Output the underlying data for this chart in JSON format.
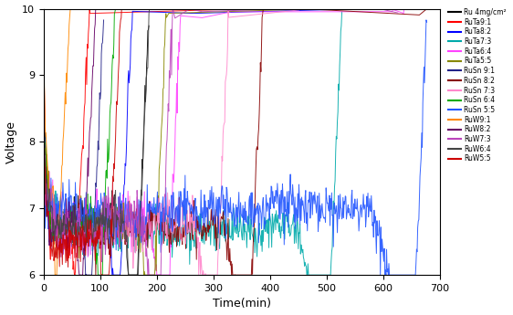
{
  "title": "",
  "xlabel": "Time(min)",
  "ylabel": "Voltage",
  "xlim": [
    0,
    700
  ],
  "ylim": [
    6,
    10
  ],
  "xticks": [
    0,
    100,
    200,
    300,
    400,
    500,
    600,
    700
  ],
  "yticks": [
    6,
    7,
    8,
    9,
    10
  ],
  "series": [
    {
      "label": "Ru 4mg/cm²",
      "color": "#000000",
      "lifetime": 160,
      "v_init": 8.0,
      "v_min": 6.8,
      "noise": 0.18,
      "rise_rate": 0.012
    },
    {
      "label": "RuTa9:1",
      "color": "#FF0000",
      "lifetime": 55,
      "v_init": 9.8,
      "v_min": 6.4,
      "noise": 0.18,
      "rise_rate": 0.05
    },
    {
      "label": "RuTa8:2",
      "color": "#0000FF",
      "lifetime": 130,
      "v_init": 8.5,
      "v_min": 6.6,
      "noise": 0.2,
      "rise_rate": 0.025
    },
    {
      "label": "RuTa7:3",
      "color": "#00AAAA",
      "lifetime": 500,
      "v_init": 7.5,
      "v_min": 6.6,
      "noise": 0.2,
      "rise_rate": 0.008
    },
    {
      "label": "RuTa6:4",
      "color": "#FF44FF",
      "lifetime": 215,
      "v_init": 7.8,
      "v_min": 6.7,
      "noise": 0.25,
      "rise_rate": 0.015
    },
    {
      "label": "RuTa5:5",
      "color": "#888800",
      "lifetime": 190,
      "v_init": 8.0,
      "v_min": 6.65,
      "noise": 0.2,
      "rise_rate": 0.018
    },
    {
      "label": "RuSn 9:1",
      "color": "#222288",
      "lifetime": 80,
      "v_init": 8.5,
      "v_min": 6.7,
      "noise": 0.18,
      "rise_rate": 0.04
    },
    {
      "label": "RuSn 8:2",
      "color": "#880000",
      "lifetime": 360,
      "v_init": 7.2,
      "v_min": 6.6,
      "noise": 0.2,
      "rise_rate": 0.008
    },
    {
      "label": "RuSn 7:3",
      "color": "#FF88CC",
      "lifetime": 300,
      "v_init": 7.5,
      "v_min": 6.6,
      "noise": 0.25,
      "rise_rate": 0.01
    },
    {
      "label": "RuSn 6:4",
      "color": "#00AA00",
      "lifetime": 100,
      "v_init": 9.0,
      "v_min": 6.7,
      "noise": 0.2,
      "rise_rate": 0.035
    },
    {
      "label": "RuSn 5:5",
      "color": "#2255FF",
      "lifetime": 650,
      "v_init": 7.2,
      "v_min": 6.9,
      "noise": 0.22,
      "rise_rate": 0.005
    },
    {
      "label": "RuW9:1",
      "color": "#FF8800",
      "lifetime": 20,
      "v_init": 9.5,
      "v_min": 7.2,
      "noise": 0.12,
      "rise_rate": 0.1
    },
    {
      "label": "RuW8:2",
      "color": "#660066",
      "lifetime": 65,
      "v_init": 8.8,
      "v_min": 6.7,
      "noise": 0.18,
      "rise_rate": 0.045
    },
    {
      "label": "RuW7:3",
      "color": "#BB44BB",
      "lifetime": 200,
      "v_init": 7.8,
      "v_min": 6.65,
      "noise": 0.25,
      "rise_rate": 0.016
    },
    {
      "label": "RuW6:4",
      "color": "#444444",
      "lifetime": 160,
      "v_init": 8.0,
      "v_min": 6.7,
      "noise": 0.18,
      "rise_rate": 0.02
    },
    {
      "label": "RuW5:5",
      "color": "#CC0000",
      "lifetime": 110,
      "v_init": 8.3,
      "v_min": 6.4,
      "noise": 0.18,
      "rise_rate": 0.03
    }
  ]
}
